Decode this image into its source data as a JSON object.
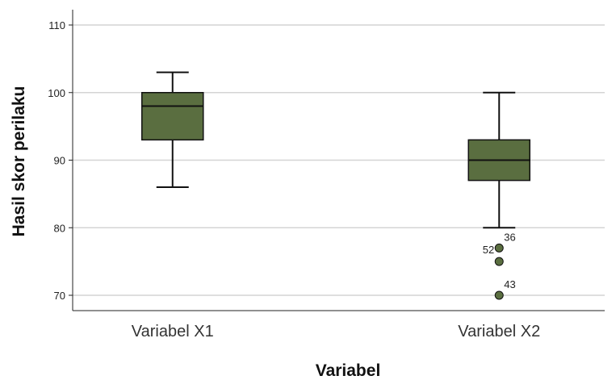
{
  "chart_data": {
    "type": "boxplot",
    "title": "",
    "xlabel": "Variabel",
    "ylabel": "Hasil skor perilaku",
    "ylim": [
      67,
      112
    ],
    "yticks": [
      70,
      80,
      90,
      100,
      110
    ],
    "ytick_labels": [
      "70",
      "80",
      "90",
      "100",
      "110"
    ],
    "grid": "horizontal",
    "colors": {
      "box_fill": "#5a6e40",
      "outline": "#111111",
      "grid": "#d4d4d4"
    },
    "categories": [
      "Variabel X1",
      "Variabel X2"
    ],
    "boxes": [
      {
        "category": "Variabel X1",
        "whisker_low": 86,
        "q1": 93,
        "median": 98,
        "q3": 100,
        "whisker_high": 103,
        "outliers": []
      },
      {
        "category": "Variabel X2",
        "whisker_low": 80,
        "q1": 87,
        "median": 90,
        "q3": 93,
        "whisker_high": 100,
        "outliers": [
          {
            "value": 77,
            "label": "36"
          },
          {
            "value": 75,
            "label": "52"
          },
          {
            "value": 70,
            "label": "43"
          }
        ]
      }
    ]
  }
}
